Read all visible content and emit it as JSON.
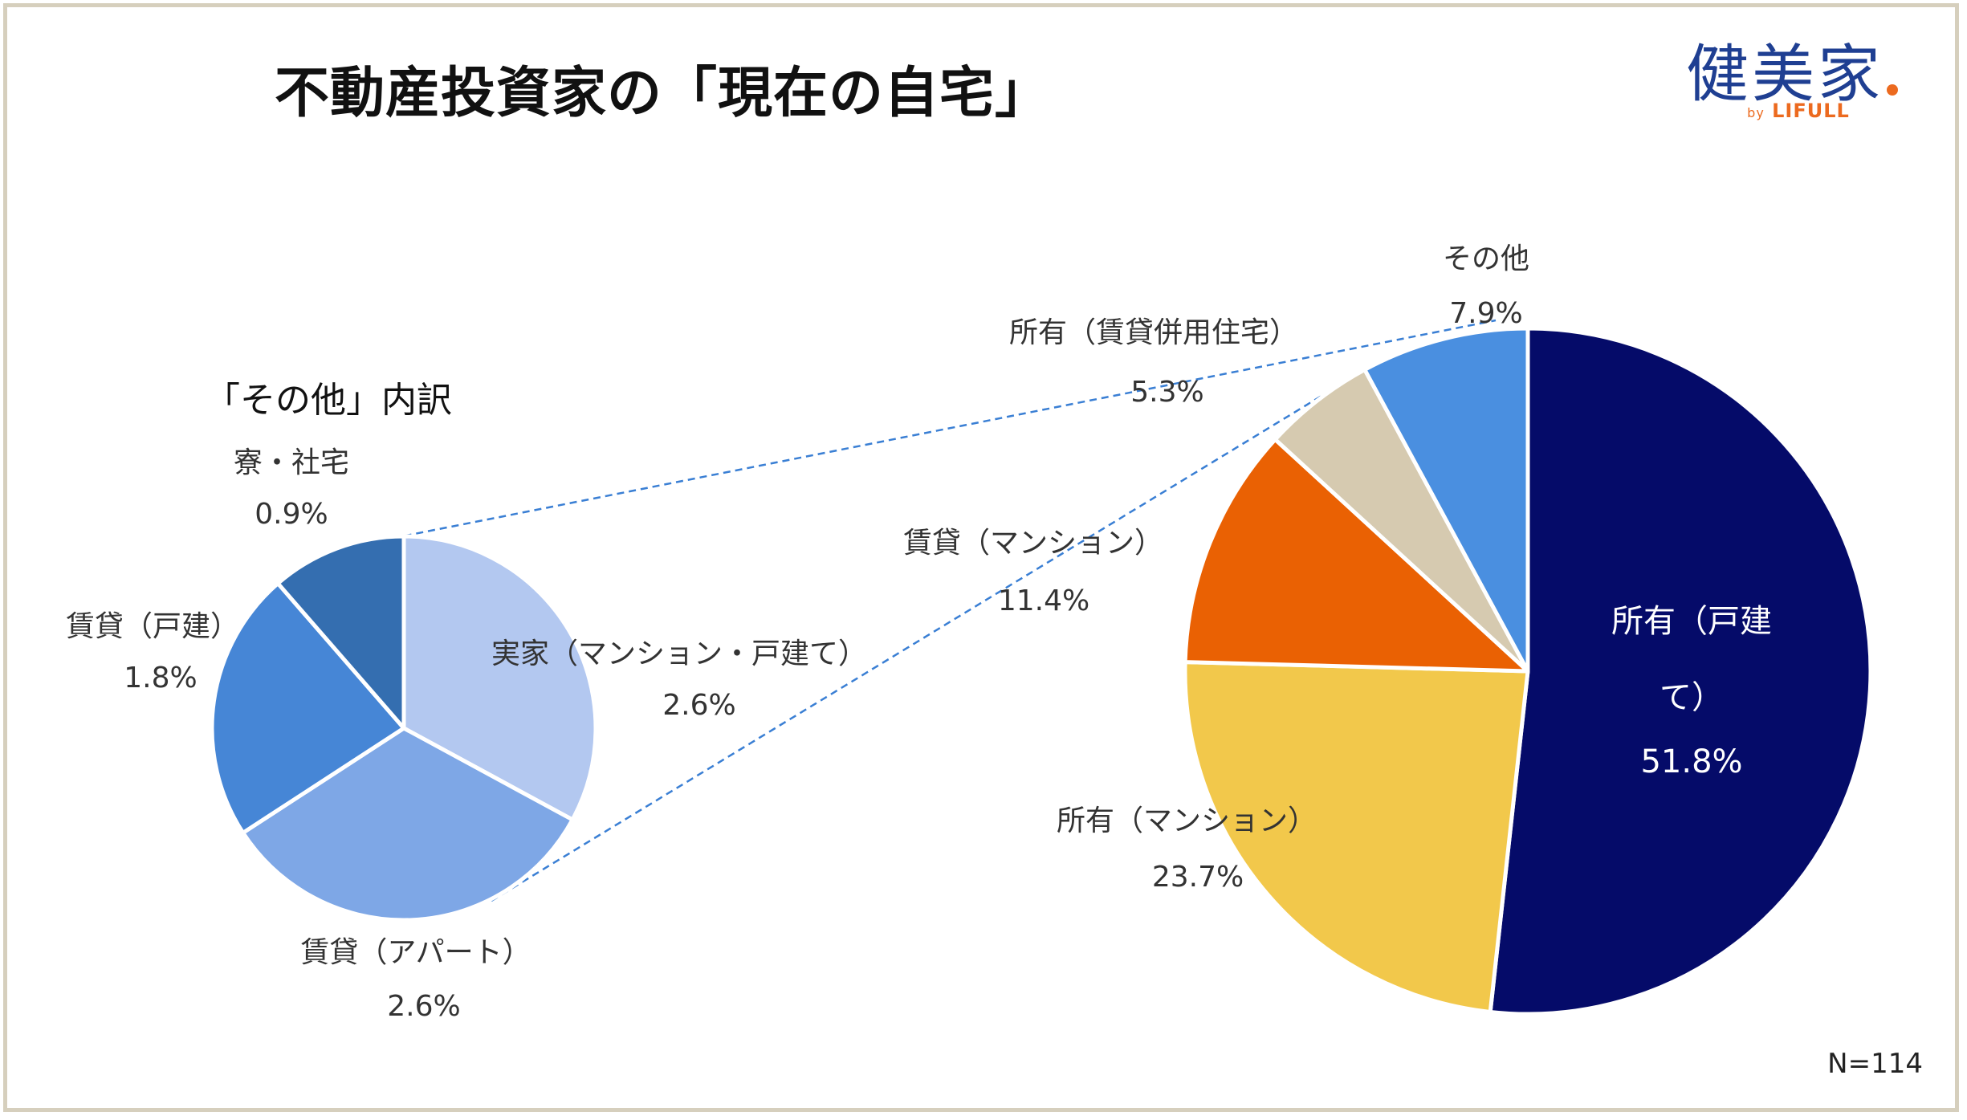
{
  "title": "不動産投資家の「現在の自宅」",
  "logo": {
    "main": "健美家",
    "by": "by",
    "brand": "LIFULL",
    "colors": {
      "main": "#1f3f92",
      "accent": "#ec6a1f"
    }
  },
  "sample_size": "N=114",
  "chart_data": [
    {
      "type": "pie",
      "title": "",
      "start_angle": 0,
      "direction": "clockwise",
      "slices": [
        {
          "name": "所有（戸建て）",
          "value": 51.8,
          "label": "51.8%",
          "color": "#050b69",
          "text_color": "#ffffff"
        },
        {
          "name": "所有（マンション）",
          "value": 23.7,
          "label": "23.7%",
          "color": "#f2c84b",
          "text_color": "#333333"
        },
        {
          "name": "賃貸（マンション）",
          "value": 11.4,
          "label": "11.4%",
          "color": "#ea6103",
          "text_color": "#333333"
        },
        {
          "name": "所有（賃貸併用住宅）",
          "value": 5.3,
          "label": "5.3%",
          "color": "#d6cab0",
          "text_color": "#333333"
        },
        {
          "name": "その他",
          "value": 7.9,
          "label": "7.9%",
          "color": "#4a8fe0",
          "text_color": "#333333"
        }
      ]
    },
    {
      "type": "pie",
      "title": "「その他」内訳",
      "start_angle": 0,
      "direction": "clockwise",
      "slices": [
        {
          "name": "実家（マンション・戸建て）",
          "value": 2.6,
          "label": "2.6%",
          "color": "#b3c8f0"
        },
        {
          "name": "賃貸（アパート）",
          "value": 2.6,
          "label": "2.6%",
          "color": "#7ea7e6"
        },
        {
          "name": "賃貸（戸建）",
          "value": 1.8,
          "label": "1.8%",
          "color": "#4686d6"
        },
        {
          "name": "寮・社宅",
          "value": 0.9,
          "label": "0.9%",
          "color": "#346eb0"
        }
      ]
    }
  ]
}
